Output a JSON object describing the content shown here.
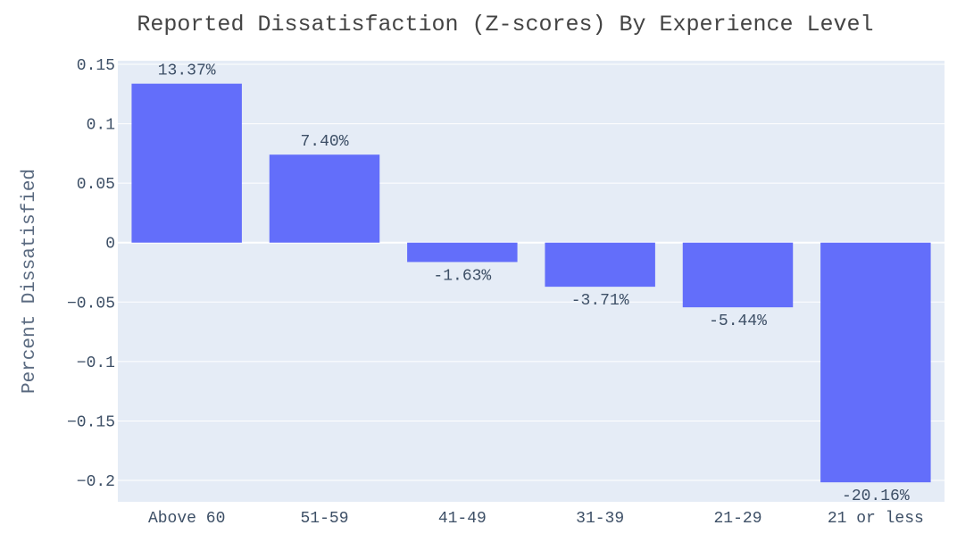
{
  "chart_data": {
    "type": "bar",
    "title": "Reported Dissatisfaction (Z-scores) By Experience Level",
    "xlabel": "",
    "ylabel": "Percent Dissatisfied",
    "categories": [
      "Above 60",
      "51-59",
      "41-49",
      "31-39",
      "21-29",
      "21 or less"
    ],
    "values": [
      0.1337,
      0.074,
      -0.0163,
      -0.0371,
      -0.0544,
      -0.2016
    ],
    "value_labels": [
      "13.37%",
      "7.40%",
      "-1.63%",
      "-3.71%",
      "-5.44%",
      "-20.16%"
    ],
    "y_ticks": [
      0.15,
      0.1,
      0.05,
      0,
      -0.05,
      -0.1,
      -0.15,
      -0.2
    ],
    "y_tick_labels": [
      "0.15",
      "0.1",
      "0.05",
      "0",
      "−0.05",
      "−0.1",
      "−0.15",
      "−0.2"
    ],
    "ylim": [
      -0.218,
      0.153
    ],
    "grid": true,
    "legend": false,
    "colors": {
      "bar": "#636efa",
      "plot_background": "#e5ecf6",
      "grid": "#ffffff",
      "text": "#2a3f5f"
    }
  }
}
